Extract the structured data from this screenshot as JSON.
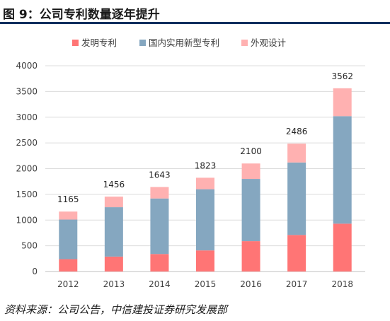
{
  "header": {
    "title": "图 9：公司专利数量逐年提升"
  },
  "footer": {
    "source": "资料来源：公司公告，中信建投证券研究发展部"
  },
  "chart_data": {
    "type": "bar",
    "stacked": true,
    "categories": [
      "2012",
      "2013",
      "2014",
      "2015",
      "2016",
      "2017",
      "2018"
    ],
    "series": [
      {
        "name": "发明专利",
        "color": "#ff7575",
        "values": [
          240,
          290,
          340,
          410,
          590,
          710,
          930
        ]
      },
      {
        "name": "国内实用新型专利",
        "color": "#85a7c0",
        "values": [
          770,
          960,
          1080,
          1190,
          1210,
          1410,
          2090
        ]
      },
      {
        "name": "外观设计",
        "color": "#ffb1b1",
        "values": [
          155,
          206,
          223,
          223,
          300,
          366,
          542
        ]
      }
    ],
    "totals": [
      "1165",
      "1456",
      "1643",
      "1823",
      "2100",
      "2486",
      "3562"
    ],
    "ylim": [
      0,
      4000
    ],
    "yticks": [
      "0",
      "500",
      "1000",
      "1500",
      "2000",
      "2500",
      "3000",
      "3500",
      "4000"
    ],
    "grid": true,
    "legend": "top"
  }
}
